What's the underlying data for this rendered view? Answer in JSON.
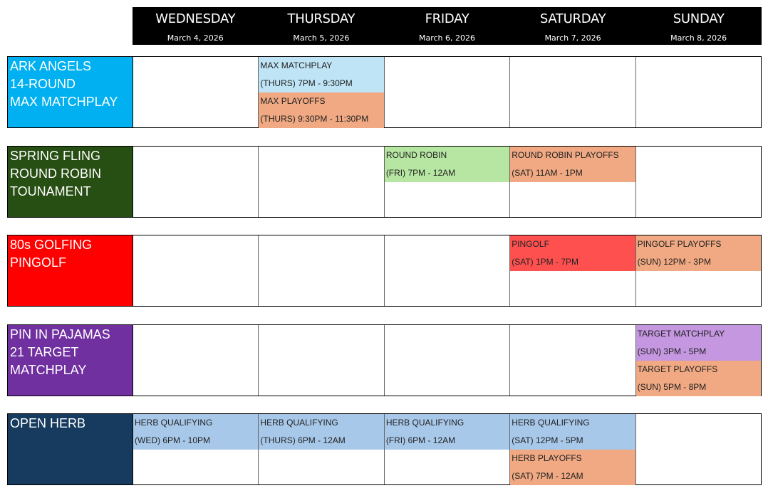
{
  "days": [
    {
      "name": "WEDNESDAY",
      "date": "March 4, 2026"
    },
    {
      "name": "THURSDAY",
      "date": "March 5, 2026"
    },
    {
      "name": "FRIDAY",
      "date": "March 6, 2026"
    },
    {
      "name": "SATURDAY",
      "date": "March 7, 2026"
    },
    {
      "name": "SUNDAY",
      "date": "March 8, 2026"
    }
  ],
  "groups": [
    {
      "lines": [
        "ARK ANGELS",
        "14-ROUND",
        "MAX MATCHPLAY"
      ],
      "color": "#00b0f0",
      "events": [
        {
          "day": "THURSDAY",
          "title": "MAX MATCHPLAY",
          "time": "(THURS) 7PM - 9:30PM",
          "color": "#bfe4f5"
        },
        {
          "day": "THURSDAY",
          "title": "MAX PLAYOFFS",
          "time": "(THURS) 9:30PM - 11:30PM",
          "color": "#f0a982"
        }
      ]
    },
    {
      "lines": [
        "SPRING FLING",
        "ROUND ROBIN",
        "TOUNAMENT"
      ],
      "color": "#274e13",
      "events": [
        {
          "day": "FRIDAY",
          "title": "ROUND ROBIN",
          "time": "(FRI) 7PM - 12AM",
          "color": "#b6e6a2"
        },
        {
          "day": "SATURDAY",
          "title": "ROUND ROBIN PLAYOFFS",
          "time": "(SAT) 11AM - 1PM",
          "color": "#f0a982"
        }
      ]
    },
    {
      "lines": [
        "80s GOLFING",
        "PINGOLF"
      ],
      "color": "#ff0000",
      "events": [
        {
          "day": "SATURDAY",
          "title": "PINGOLF",
          "time": "(SAT) 1PM - 7PM",
          "color": "#ff5050"
        },
        {
          "day": "SUNDAY",
          "title": "PINGOLF PLAYOFFS",
          "time": "(SUN) 12PM - 3PM",
          "color": "#f0a982"
        }
      ]
    },
    {
      "lines": [
        "PIN IN PAJAMAS",
        "21 TARGET",
        "MATCHPLAY"
      ],
      "color": "#7030a0",
      "events": [
        {
          "day": "SUNDAY",
          "title": "TARGET MATCHPLAY",
          "time": "(SUN) 3PM - 5PM",
          "color": "#c497e0"
        },
        {
          "day": "SUNDAY",
          "title": "TARGET PLAYOFFS",
          "time": "(SUN) 5PM - 8PM",
          "color": "#f0a982"
        }
      ]
    },
    {
      "lines": [
        "OPEN HERB"
      ],
      "color": "#173b5f",
      "events": [
        {
          "day": "WEDNESDAY",
          "title": "HERB QUALIFYING",
          "time": "(WED) 6PM - 10PM",
          "color": "#a8c8ea"
        },
        {
          "day": "THURSDAY",
          "title": "HERB QUALIFYING",
          "time": "(THURS) 6PM - 12AM",
          "color": "#a8c8ea"
        },
        {
          "day": "FRIDAY",
          "title": "HERB QUALIFYING",
          "time": "(FRI) 6PM - 12AM",
          "color": "#a8c8ea"
        },
        {
          "day": "SATURDAY",
          "title": "HERB QUALIFYING",
          "time": "(SAT) 12PM - 5PM",
          "color": "#a8c8ea"
        },
        {
          "day": "SATURDAY",
          "title": "HERB PLAYOFFS",
          "time": "(SAT) 7PM - 12AM",
          "color": "#f0a982"
        }
      ]
    }
  ]
}
